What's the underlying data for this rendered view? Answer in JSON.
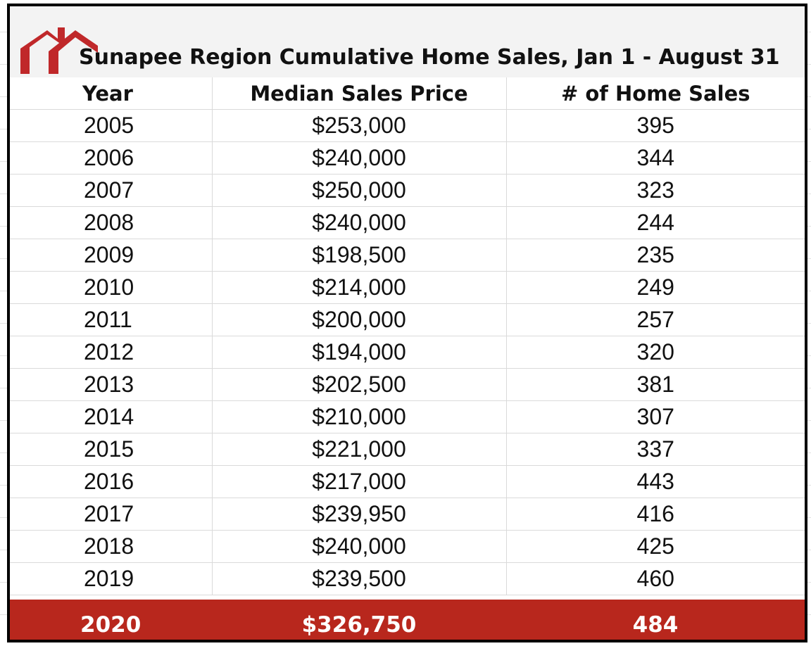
{
  "title": "Sunapee Region Cumulative Home Sales, Jan 1 - August 31",
  "logo": {
    "icon": "house-roof-logo-icon",
    "color": "#c0282a"
  },
  "columns": [
    "Year",
    "Median Sales Price",
    "# of Home Sales"
  ],
  "rows": [
    {
      "year": "2005",
      "price": "$253,000",
      "sales": "395"
    },
    {
      "year": "2006",
      "price": "$240,000",
      "sales": "344"
    },
    {
      "year": "2007",
      "price": "$250,000",
      "sales": "323"
    },
    {
      "year": "2008",
      "price": "$240,000",
      "sales": "244"
    },
    {
      "year": "2009",
      "price": "$198,500",
      "sales": "235"
    },
    {
      "year": "2010",
      "price": "$214,000",
      "sales": "249"
    },
    {
      "year": "2011",
      "price": "$200,000",
      "sales": "257"
    },
    {
      "year": "2012",
      "price": "$194,000",
      "sales": "320"
    },
    {
      "year": "2013",
      "price": "$202,500",
      "sales": "381"
    },
    {
      "year": "2014",
      "price": "$210,000",
      "sales": "307"
    },
    {
      "year": "2015",
      "price": "$221,000",
      "sales": "337"
    },
    {
      "year": "2016",
      "price": "$217,000",
      "sales": "443"
    },
    {
      "year": "2017",
      "price": "$239,950",
      "sales": "416"
    },
    {
      "year": "2018",
      "price": "$240,000",
      "sales": "425"
    },
    {
      "year": "2019",
      "price": "$239,500",
      "sales": "460"
    }
  ],
  "highlight_row": {
    "year": "2020",
    "price": "$326,750",
    "sales": "484",
    "background": "#b8271d"
  }
}
